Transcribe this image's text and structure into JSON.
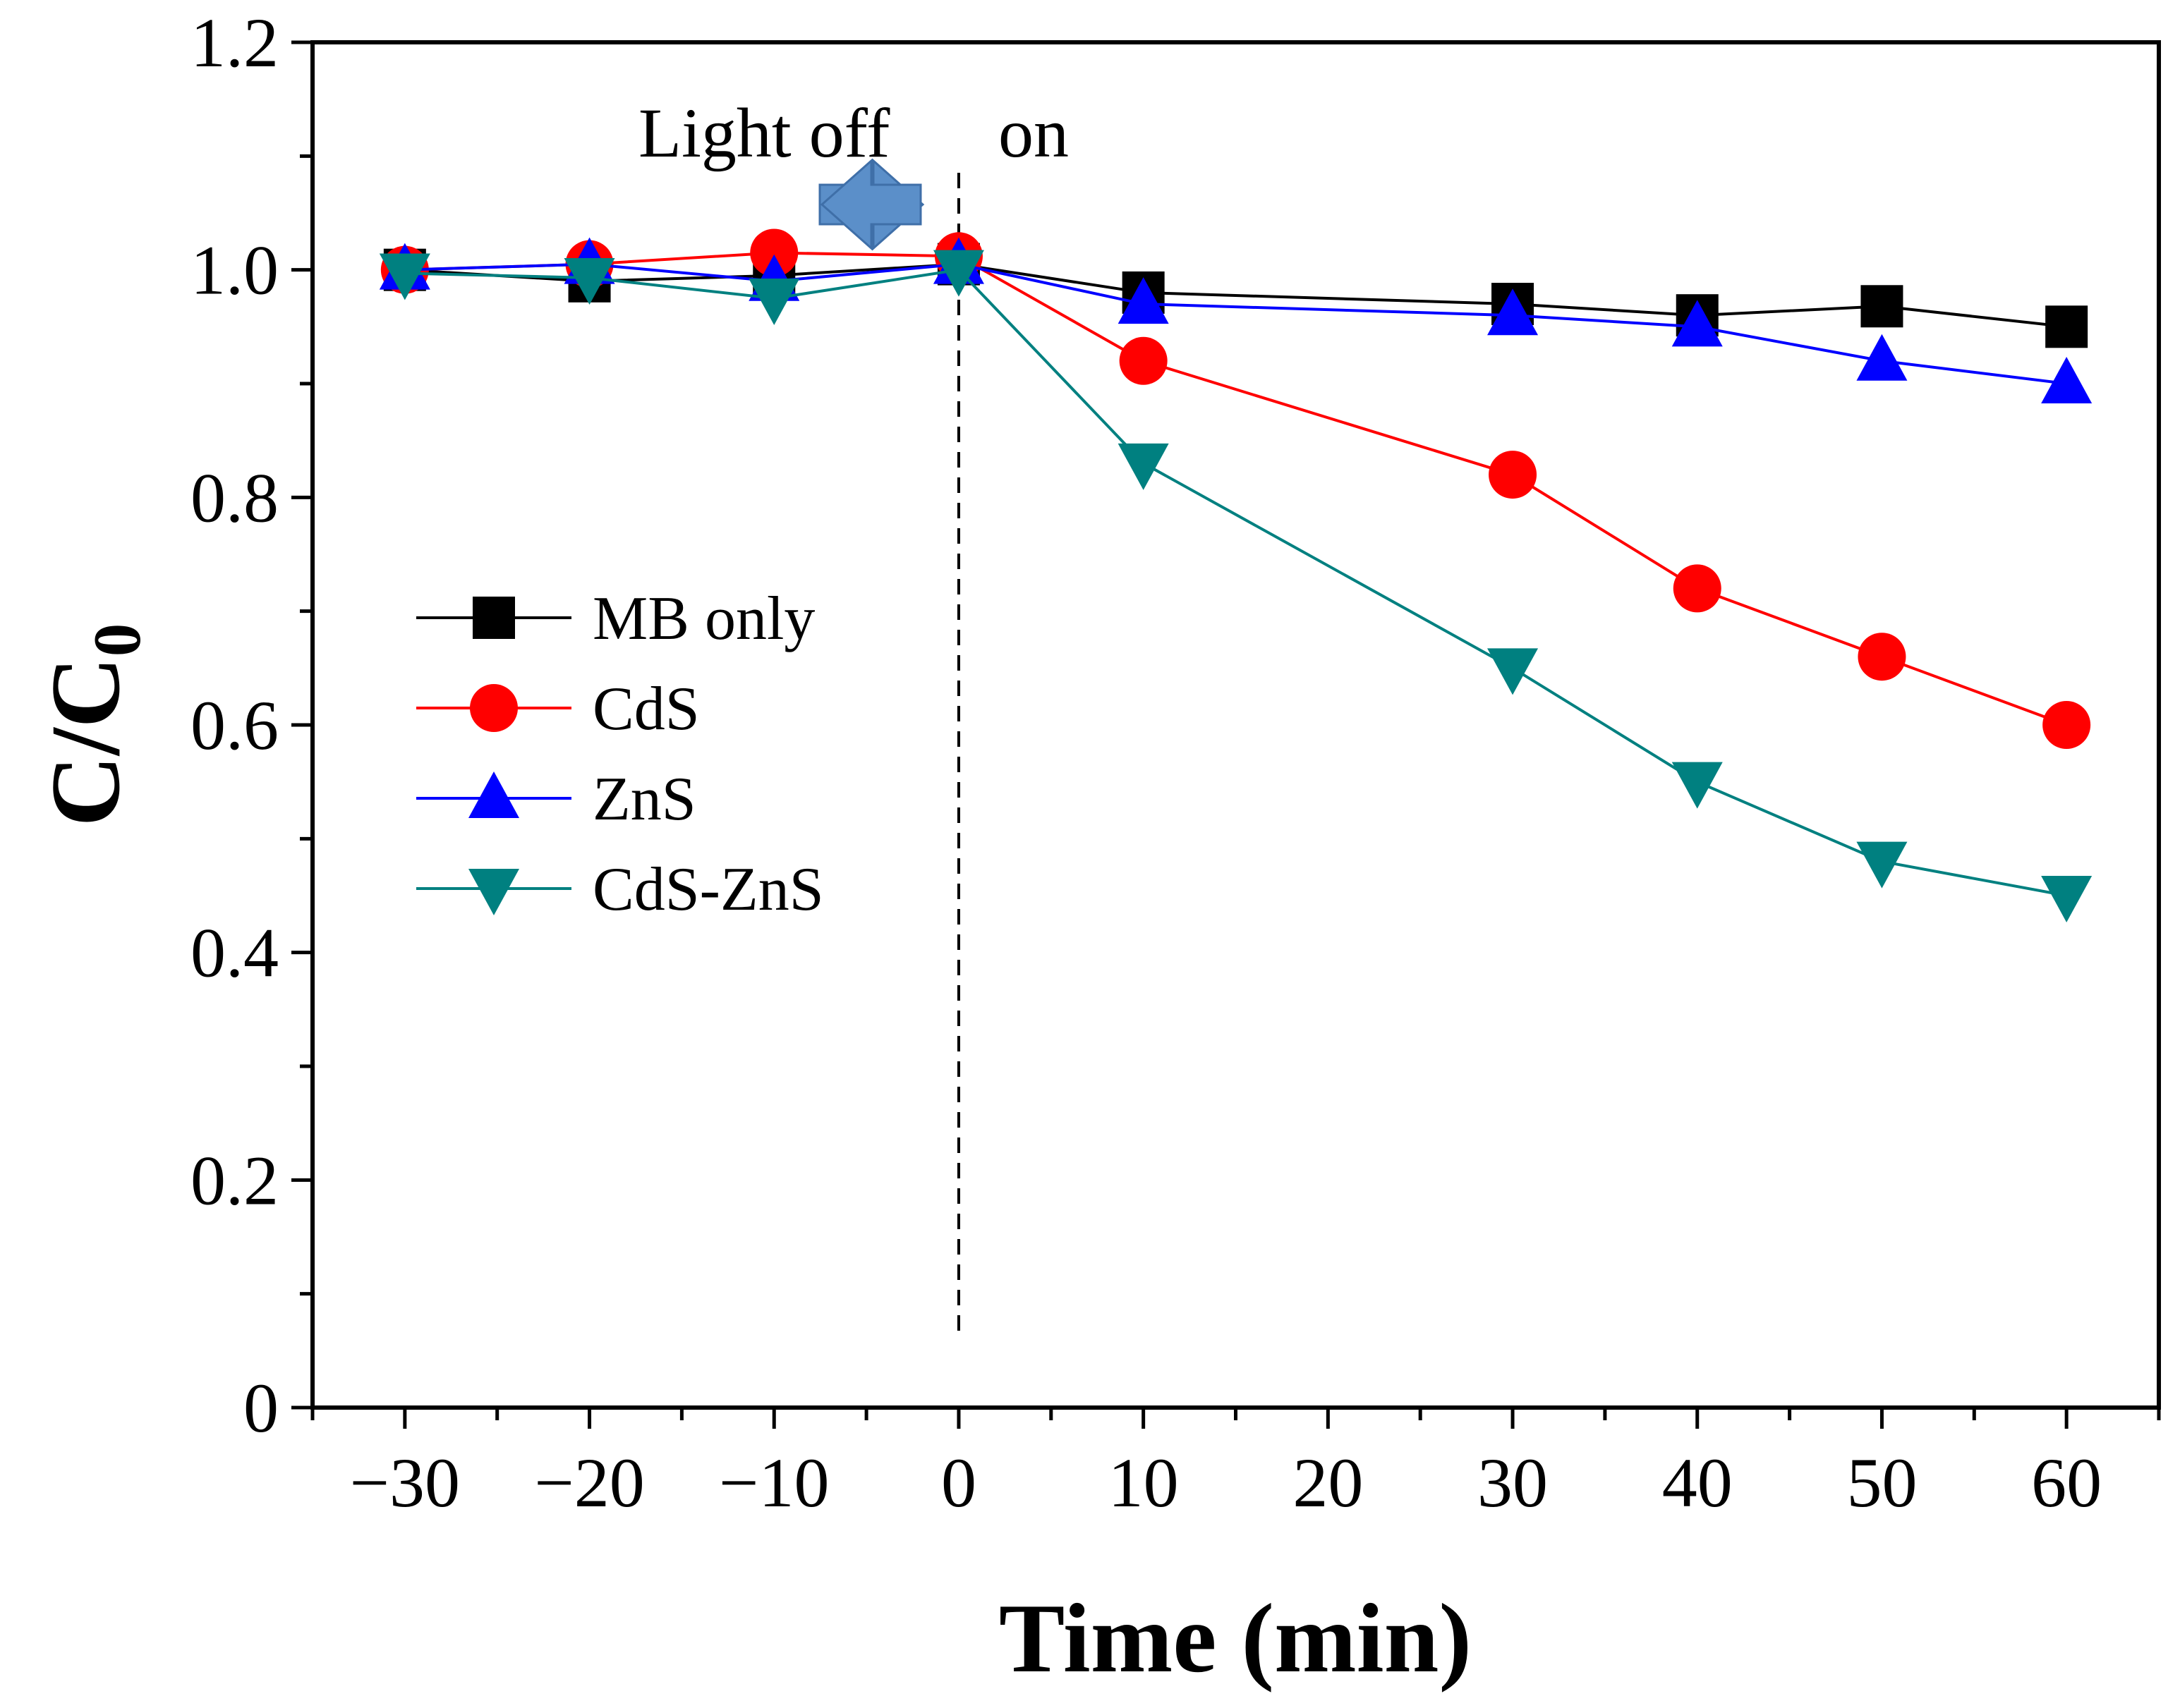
{
  "chart_data": {
    "type": "line",
    "title": "",
    "xlabel": "Time (min)",
    "ylabel_main": "C/C",
    "ylabel_sub": "0",
    "xlim": [
      -35,
      65
    ],
    "ylim": [
      0,
      1.2
    ],
    "xticks": [
      -30,
      -20,
      -10,
      0,
      10,
      20,
      30,
      40,
      50,
      60
    ],
    "xtick_labels": [
      "−30",
      "−20",
      "−10",
      "0",
      "10",
      "20",
      "30",
      "40",
      "50",
      "60"
    ],
    "yticks": [
      0,
      0.2,
      0.4,
      0.6,
      0.8,
      1.0,
      1.2
    ],
    "ytick_labels": [
      "0",
      "0.2",
      "0.4",
      "0.6",
      "0.8",
      "1.0",
      "1.2"
    ],
    "x": [
      -30,
      -20,
      -10,
      0,
      10,
      30,
      40,
      50,
      60
    ],
    "series": [
      {
        "name": "MB only",
        "color": "#000000",
        "marker": "square",
        "values": [
          1.0,
          0.99,
          0.995,
          1.005,
          0.98,
          0.97,
          0.96,
          0.968,
          0.95
        ]
      },
      {
        "name": "CdS",
        "color": "#ff0000",
        "marker": "circle",
        "values": [
          1.0,
          1.005,
          1.015,
          1.012,
          0.92,
          0.82,
          0.72,
          0.66,
          0.6
        ]
      },
      {
        "name": "ZnS",
        "color": "#0000ff",
        "marker": "triangle-up",
        "values": [
          1.0,
          1.005,
          0.99,
          1.005,
          0.97,
          0.96,
          0.95,
          0.92,
          0.9
        ]
      },
      {
        "name": "CdS-ZnS",
        "color": "#008080",
        "marker": "triangle-down",
        "values": [
          0.997,
          0.993,
          0.975,
          1.0,
          0.83,
          0.65,
          0.55,
          0.48,
          0.45
        ]
      }
    ],
    "annotations": {
      "light_off": "Light off",
      "light_on": "on",
      "divider_x": 0,
      "arrow_color": "#5b8fc9"
    },
    "legend_position": "center-left"
  }
}
